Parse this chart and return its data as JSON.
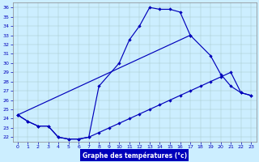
{
  "title": "Graphe des températures (°c)",
  "bg_color": "#cceeff",
  "line_color": "#0000bb",
  "grid_color": "#aacccc",
  "ylim": [
    21.5,
    36.5
  ],
  "xlim": [
    -0.5,
    23.5
  ],
  "yticks": [
    22,
    23,
    24,
    25,
    26,
    27,
    28,
    29,
    30,
    31,
    32,
    33,
    34,
    35,
    36
  ],
  "xticks": [
    0,
    1,
    2,
    3,
    4,
    5,
    6,
    7,
    8,
    9,
    10,
    11,
    12,
    13,
    14,
    15,
    16,
    17,
    18,
    19,
    20,
    21,
    22,
    23
  ],
  "line1_x": [
    0,
    1,
    2,
    3,
    4,
    5,
    6,
    7,
    8,
    10,
    11,
    12,
    13,
    14,
    15,
    16,
    17
  ],
  "line1_y": [
    24.4,
    23.7,
    23.2,
    23.2,
    22.0,
    21.8,
    21.8,
    22.0,
    27.5,
    30.0,
    32.5,
    34.0,
    36.0,
    35.8,
    35.8,
    35.5,
    33.0
  ],
  "line2_x": [
    0,
    17,
    19,
    20,
    21,
    22,
    23
  ],
  "line2_y": [
    24.4,
    33.0,
    30.8,
    28.8,
    27.5,
    26.8,
    26.5
  ],
  "line3_x": [
    0,
    1,
    2,
    3,
    4,
    5,
    6,
    7,
    8,
    9,
    10,
    11,
    12,
    13,
    14,
    15,
    16,
    17,
    18,
    19,
    20,
    21,
    22,
    23
  ],
  "line3_y": [
    24.4,
    23.7,
    23.2,
    23.2,
    22.0,
    21.8,
    21.8,
    22.0,
    22.5,
    23.0,
    23.5,
    24.0,
    24.5,
    25.0,
    25.5,
    26.0,
    26.5,
    27.0,
    27.5,
    28.0,
    28.5,
    29.0,
    26.8,
    26.5
  ],
  "xlabel_bg": "#0000bb"
}
